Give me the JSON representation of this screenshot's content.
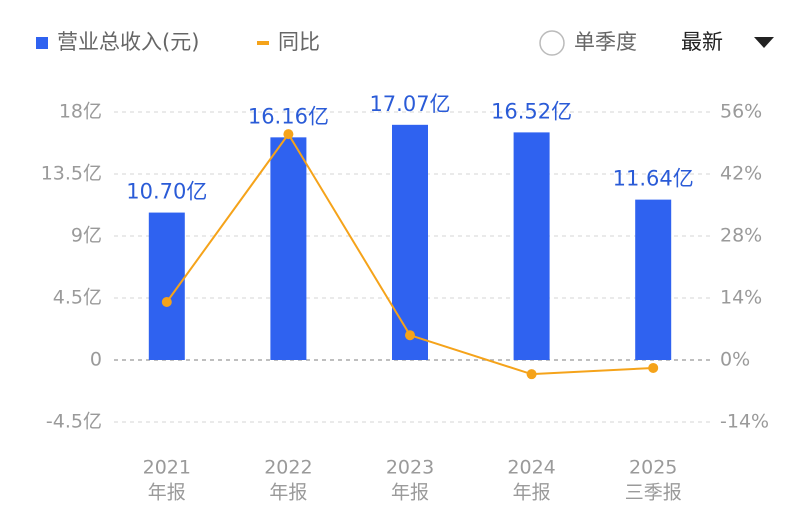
{
  "chart_data": {
    "type": "bar-line",
    "legend_position": "top",
    "categories": [
      "2021",
      "2022",
      "2023",
      "2024",
      "2025"
    ],
    "period_labels": [
      "年报",
      "年报",
      "年报",
      "年报",
      "三季报"
    ],
    "series": [
      {
        "name": "营业总收入(元)",
        "type": "bar",
        "axis": "y",
        "color": "#2f62f0",
        "values": [
          10.7,
          16.16,
          17.07,
          16.52,
          11.64
        ],
        "value_labels": [
          "10.70亿",
          "16.16亿",
          "17.07亿",
          "16.52亿",
          "11.64亿"
        ]
      },
      {
        "name": "同比",
        "type": "line",
        "axis": "y2",
        "color": "#f5a31a",
        "values": [
          13.1,
          51.0,
          5.6,
          -3.2,
          -1.8
        ]
      }
    ],
    "ylim": [
      -4.5,
      18
    ],
    "yticks": [
      {
        "value": 18,
        "label": "18亿"
      },
      {
        "value": 13.5,
        "label": "13.5亿"
      },
      {
        "value": 9,
        "label": "9亿"
      },
      {
        "value": 4.5,
        "label": "4.5亿"
      },
      0,
      {
        "value": -4.5,
        "label": "-4.5亿"
      }
    ],
    "y2lim": [
      -14,
      56
    ],
    "y2ticks": [
      {
        "value": 56,
        "label": "56%"
      },
      {
        "value": 42,
        "label": "42%"
      },
      {
        "value": 28,
        "label": "28%"
      },
      {
        "value": 14,
        "label": "14%"
      },
      {
        "value": 0,
        "label": "0%"
      },
      {
        "value": -14,
        "label": "-14%"
      }
    ],
    "grid": true,
    "controls": {
      "radio": "单季度",
      "dropdown": "最新"
    }
  }
}
